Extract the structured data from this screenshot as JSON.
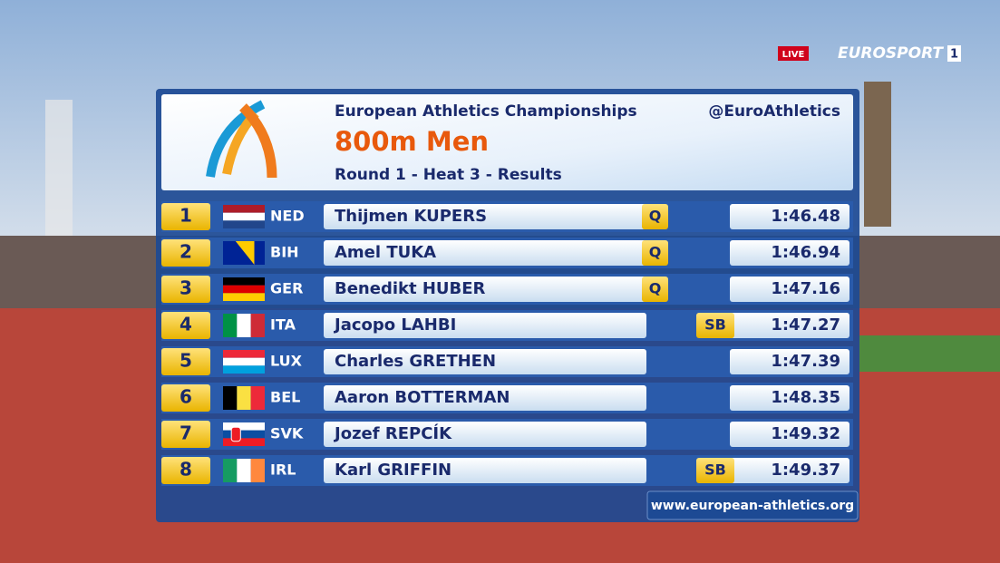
{
  "broadcast": {
    "live": "LIVE",
    "channel": "EUROSPORT",
    "channel_number": "1"
  },
  "header": {
    "event": "European Athletics Championships",
    "title": "800m Men",
    "subtitle": "Round 1 - Heat 3 - Results",
    "handle": "@EuroAthletics"
  },
  "results": {
    "rows": [
      {
        "rank": 1,
        "country": "NED",
        "athlete": "Thijmen KUPERS",
        "mark": "Q",
        "time": "1:46.48"
      },
      {
        "rank": 2,
        "country": "BIH",
        "athlete": "Amel TUKA",
        "mark": "Q",
        "time": "1:46.94"
      },
      {
        "rank": 3,
        "country": "GER",
        "athlete": "Benedikt HUBER",
        "mark": "Q",
        "time": "1:47.16"
      },
      {
        "rank": 4,
        "country": "ITA",
        "athlete": "Jacopo LAHBI",
        "mark": "SB",
        "time": "1:47.27"
      },
      {
        "rank": 5,
        "country": "LUX",
        "athlete": "Charles GRETHEN",
        "mark": null,
        "time": "1:47.39"
      },
      {
        "rank": 6,
        "country": "BEL",
        "athlete": "Aaron BOTTERMAN",
        "mark": null,
        "time": "1:48.35"
      },
      {
        "rank": 7,
        "country": "SVK",
        "athlete": "Jozef REPCÍK",
        "mark": null,
        "time": "1:49.32"
      },
      {
        "rank": 8,
        "country": "IRL",
        "athlete": "Karl GRIFFIN",
        "mark": "SB",
        "time": "1:49.37"
      }
    ]
  },
  "footer": {
    "url": "www.european-athletics.org"
  }
}
